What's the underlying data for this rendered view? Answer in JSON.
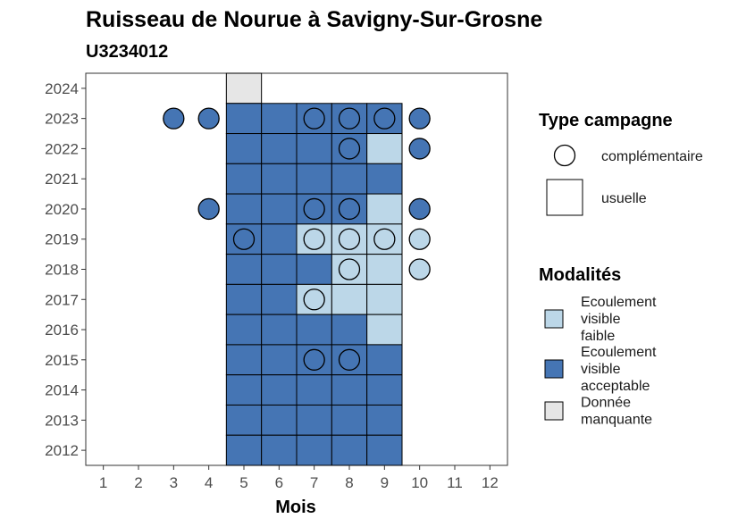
{
  "chart_data": {
    "type": "heatmap",
    "title": "Ruisseau de Nourue à Savigny-Sur-Grosne",
    "subtitle": "U3234012",
    "xlabel": "Mois",
    "ylabel": "",
    "x_ticks": [
      1,
      2,
      3,
      4,
      5,
      6,
      7,
      8,
      9,
      10,
      11,
      12
    ],
    "y_ticks": [
      2024,
      2023,
      2022,
      2021,
      2020,
      2019,
      2018,
      2017,
      2016,
      2015,
      2014,
      2013,
      2012
    ],
    "xlim": [
      0.5,
      12.5
    ],
    "ylim": [
      2011.5,
      2024.5
    ],
    "grid": false,
    "colors": {
      "acceptable": "#4575b4",
      "faible": "#bcd7e8",
      "manquante": "#e6e6e6"
    },
    "usuelle": [
      {
        "year": 2024,
        "month": 5,
        "status": "manquante"
      },
      {
        "year": 2023,
        "month": 5,
        "status": "acceptable"
      },
      {
        "year": 2023,
        "month": 6,
        "status": "acceptable"
      },
      {
        "year": 2023,
        "month": 7,
        "status": "acceptable"
      },
      {
        "year": 2023,
        "month": 8,
        "status": "acceptable"
      },
      {
        "year": 2023,
        "month": 9,
        "status": "acceptable"
      },
      {
        "year": 2022,
        "month": 5,
        "status": "acceptable"
      },
      {
        "year": 2022,
        "month": 6,
        "status": "acceptable"
      },
      {
        "year": 2022,
        "month": 7,
        "status": "acceptable"
      },
      {
        "year": 2022,
        "month": 8,
        "status": "acceptable"
      },
      {
        "year": 2022,
        "month": 9,
        "status": "faible"
      },
      {
        "year": 2021,
        "month": 5,
        "status": "acceptable"
      },
      {
        "year": 2021,
        "month": 6,
        "status": "acceptable"
      },
      {
        "year": 2021,
        "month": 7,
        "status": "acceptable"
      },
      {
        "year": 2021,
        "month": 8,
        "status": "acceptable"
      },
      {
        "year": 2021,
        "month": 9,
        "status": "acceptable"
      },
      {
        "year": 2020,
        "month": 5,
        "status": "acceptable"
      },
      {
        "year": 2020,
        "month": 6,
        "status": "acceptable"
      },
      {
        "year": 2020,
        "month": 7,
        "status": "acceptable"
      },
      {
        "year": 2020,
        "month": 8,
        "status": "acceptable"
      },
      {
        "year": 2020,
        "month": 9,
        "status": "faible"
      },
      {
        "year": 2019,
        "month": 5,
        "status": "acceptable"
      },
      {
        "year": 2019,
        "month": 6,
        "status": "acceptable"
      },
      {
        "year": 2019,
        "month": 7,
        "status": "faible"
      },
      {
        "year": 2019,
        "month": 8,
        "status": "faible"
      },
      {
        "year": 2019,
        "month": 9,
        "status": "faible"
      },
      {
        "year": 2018,
        "month": 5,
        "status": "acceptable"
      },
      {
        "year": 2018,
        "month": 6,
        "status": "acceptable"
      },
      {
        "year": 2018,
        "month": 7,
        "status": "acceptable"
      },
      {
        "year": 2018,
        "month": 8,
        "status": "faible"
      },
      {
        "year": 2018,
        "month": 9,
        "status": "faible"
      },
      {
        "year": 2017,
        "month": 5,
        "status": "acceptable"
      },
      {
        "year": 2017,
        "month": 6,
        "status": "acceptable"
      },
      {
        "year": 2017,
        "month": 7,
        "status": "faible"
      },
      {
        "year": 2017,
        "month": 8,
        "status": "faible"
      },
      {
        "year": 2017,
        "month": 9,
        "status": "faible"
      },
      {
        "year": 2016,
        "month": 5,
        "status": "acceptable"
      },
      {
        "year": 2016,
        "month": 6,
        "status": "acceptable"
      },
      {
        "year": 2016,
        "month": 7,
        "status": "acceptable"
      },
      {
        "year": 2016,
        "month": 8,
        "status": "acceptable"
      },
      {
        "year": 2016,
        "month": 9,
        "status": "faible"
      },
      {
        "year": 2015,
        "month": 5,
        "status": "acceptable"
      },
      {
        "year": 2015,
        "month": 6,
        "status": "acceptable"
      },
      {
        "year": 2015,
        "month": 7,
        "status": "acceptable"
      },
      {
        "year": 2015,
        "month": 8,
        "status": "acceptable"
      },
      {
        "year": 2015,
        "month": 9,
        "status": "acceptable"
      },
      {
        "year": 2014,
        "month": 5,
        "status": "acceptable"
      },
      {
        "year": 2014,
        "month": 6,
        "status": "acceptable"
      },
      {
        "year": 2014,
        "month": 7,
        "status": "acceptable"
      },
      {
        "year": 2014,
        "month": 8,
        "status": "acceptable"
      },
      {
        "year": 2014,
        "month": 9,
        "status": "acceptable"
      },
      {
        "year": 2013,
        "month": 5,
        "status": "acceptable"
      },
      {
        "year": 2013,
        "month": 6,
        "status": "acceptable"
      },
      {
        "year": 2013,
        "month": 7,
        "status": "acceptable"
      },
      {
        "year": 2013,
        "month": 8,
        "status": "acceptable"
      },
      {
        "year": 2013,
        "month": 9,
        "status": "acceptable"
      },
      {
        "year": 2012,
        "month": 5,
        "status": "acceptable"
      },
      {
        "year": 2012,
        "month": 6,
        "status": "acceptable"
      },
      {
        "year": 2012,
        "month": 7,
        "status": "acceptable"
      },
      {
        "year": 2012,
        "month": 8,
        "status": "acceptable"
      },
      {
        "year": 2012,
        "month": 9,
        "status": "acceptable"
      }
    ],
    "complementaire": [
      {
        "year": 2023,
        "month": 3,
        "status": "acceptable"
      },
      {
        "year": 2023,
        "month": 4,
        "status": "acceptable"
      },
      {
        "year": 2023,
        "month": 7,
        "status": "acceptable"
      },
      {
        "year": 2023,
        "month": 8,
        "status": "acceptable"
      },
      {
        "year": 2023,
        "month": 9,
        "status": "acceptable"
      },
      {
        "year": 2023,
        "month": 10,
        "status": "acceptable"
      },
      {
        "year": 2022,
        "month": 8,
        "status": "acceptable"
      },
      {
        "year": 2022,
        "month": 10,
        "status": "acceptable"
      },
      {
        "year": 2020,
        "month": 4,
        "status": "acceptable"
      },
      {
        "year": 2020,
        "month": 7,
        "status": "acceptable"
      },
      {
        "year": 2020,
        "month": 8,
        "status": "acceptable"
      },
      {
        "year": 2020,
        "month": 10,
        "status": "acceptable"
      },
      {
        "year": 2019,
        "month": 5,
        "status": "acceptable"
      },
      {
        "year": 2019,
        "month": 7,
        "status": "faible"
      },
      {
        "year": 2019,
        "month": 8,
        "status": "faible"
      },
      {
        "year": 2019,
        "month": 9,
        "status": "faible"
      },
      {
        "year": 2019,
        "month": 10,
        "status": "faible"
      },
      {
        "year": 2018,
        "month": 8,
        "status": "faible"
      },
      {
        "year": 2018,
        "month": 10,
        "status": "faible"
      },
      {
        "year": 2017,
        "month": 7,
        "status": "faible"
      },
      {
        "year": 2015,
        "month": 7,
        "status": "acceptable"
      },
      {
        "year": 2015,
        "month": 8,
        "status": "acceptable"
      }
    ],
    "legend": {
      "placement": "right",
      "type_title": "Type campagne",
      "type_items": [
        {
          "key": "complementaire",
          "label": "complémentaire"
        },
        {
          "key": "usuelle",
          "label": "usuelle"
        }
      ],
      "modalites_title": "Modalités",
      "modalites_items": [
        {
          "key": "faible",
          "lines": [
            "Ecoulement",
            "visible",
            "faible"
          ]
        },
        {
          "key": "acceptable",
          "lines": [
            "Ecoulement",
            "visible",
            "acceptable"
          ]
        },
        {
          "key": "manquante",
          "lines": [
            "Donnée",
            "manquante"
          ]
        }
      ]
    }
  }
}
